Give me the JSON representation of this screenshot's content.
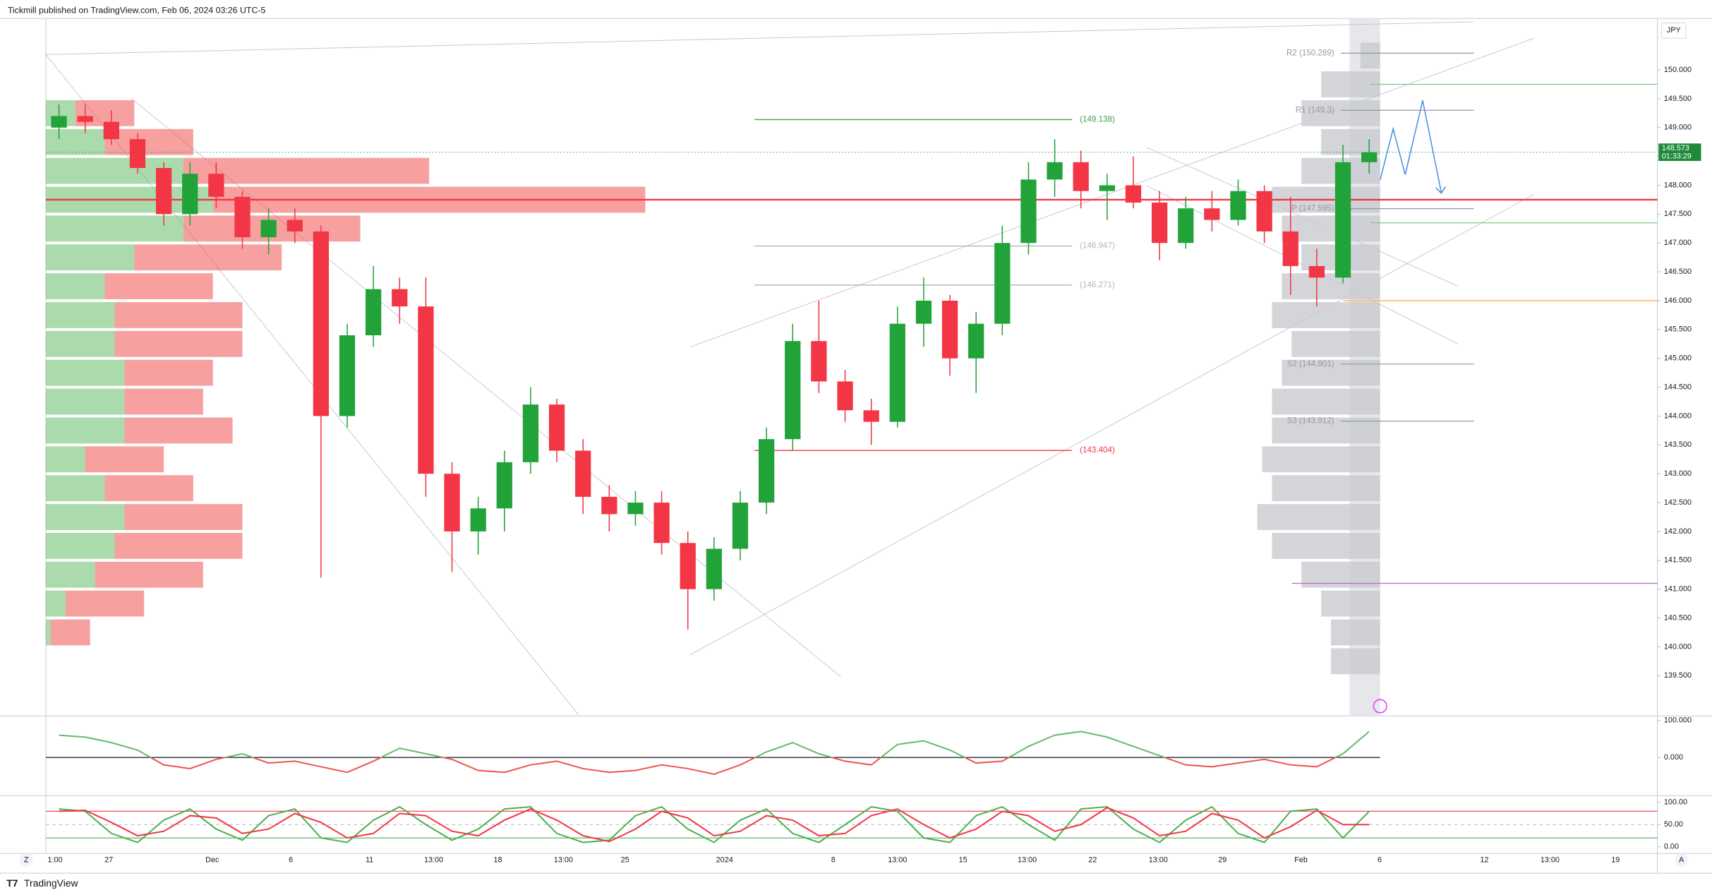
{
  "header": "Tickmill published on TradingView.com, Feb 06, 2024 03:26 UTC-5",
  "footer": {
    "logo": "TradingView",
    "left": "Z",
    "right": "A"
  },
  "chart_data": [
    {
      "type": "candlestick",
      "currency": "JPY",
      "up_color": "#22a33a",
      "down_color": "#f23645",
      "xlim": [
        0,
        123
      ],
      "ylim": [
        138.82,
        150.89
      ],
      "x": [
        1,
        3,
        5,
        7,
        9,
        11,
        13,
        15,
        17,
        19,
        21,
        23,
        25,
        27,
        29,
        31,
        33,
        35,
        37,
        39,
        41,
        43,
        45,
        47,
        49,
        51,
        53,
        55,
        57,
        59,
        61,
        63,
        65,
        67,
        69,
        71,
        73,
        75,
        77,
        79,
        81,
        83,
        85,
        87,
        89,
        91,
        93,
        95,
        97,
        99,
        101
      ],
      "candles": [
        [
          149.0,
          149.4,
          148.8,
          149.2
        ],
        [
          149.2,
          149.4,
          148.9,
          149.1
        ],
        [
          149.1,
          149.3,
          148.7,
          148.8
        ],
        [
          148.8,
          148.9,
          148.2,
          148.3
        ],
        [
          148.3,
          148.4,
          147.3,
          147.5
        ],
        [
          147.5,
          148.4,
          147.3,
          148.2
        ],
        [
          148.2,
          148.4,
          147.6,
          147.8
        ],
        [
          147.8,
          147.9,
          146.9,
          147.1
        ],
        [
          147.1,
          147.6,
          146.8,
          147.4
        ],
        [
          147.4,
          147.6,
          147.0,
          147.2
        ],
        [
          147.2,
          147.3,
          141.2,
          144.0
        ],
        [
          144.0,
          145.6,
          143.8,
          145.4
        ],
        [
          145.4,
          146.6,
          145.2,
          146.2
        ],
        [
          146.2,
          146.4,
          145.6,
          145.9
        ],
        [
          145.9,
          146.4,
          142.6,
          143.0
        ],
        [
          143.0,
          143.2,
          141.3,
          142.0
        ],
        [
          142.0,
          142.6,
          141.6,
          142.4
        ],
        [
          142.4,
          143.4,
          142.0,
          143.2
        ],
        [
          143.2,
          144.5,
          143.0,
          144.2
        ],
        [
          144.2,
          144.3,
          143.2,
          143.4
        ],
        [
          143.4,
          143.6,
          142.3,
          142.6
        ],
        [
          142.6,
          142.8,
          142.0,
          142.3
        ],
        [
          142.3,
          142.7,
          142.1,
          142.5
        ],
        [
          142.5,
          142.7,
          141.6,
          141.8
        ],
        [
          141.8,
          142.0,
          140.3,
          141.0
        ],
        [
          141.0,
          141.9,
          140.8,
          141.7
        ],
        [
          141.7,
          142.7,
          141.5,
          142.5
        ],
        [
          142.5,
          143.8,
          142.3,
          143.6
        ],
        [
          143.6,
          145.6,
          143.4,
          145.3
        ],
        [
          145.3,
          146.0,
          144.4,
          144.6
        ],
        [
          144.6,
          144.8,
          143.9,
          144.1
        ],
        [
          144.1,
          144.3,
          143.5,
          143.9
        ],
        [
          143.9,
          145.9,
          143.8,
          145.6
        ],
        [
          145.6,
          146.4,
          145.2,
          146.0
        ],
        [
          146.0,
          146.1,
          144.7,
          145.0
        ],
        [
          145.0,
          145.8,
          144.4,
          145.6
        ],
        [
          145.6,
          147.3,
          145.4,
          147.0
        ],
        [
          147.0,
          148.4,
          146.8,
          148.1
        ],
        [
          148.1,
          148.8,
          147.8,
          148.4
        ],
        [
          148.4,
          148.6,
          147.6,
          147.9
        ],
        [
          147.9,
          148.2,
          147.4,
          148.0
        ],
        [
          148.0,
          148.5,
          147.6,
          147.7
        ],
        [
          147.7,
          147.9,
          146.7,
          147.0
        ],
        [
          147.0,
          147.8,
          146.9,
          147.6
        ],
        [
          147.6,
          147.9,
          147.2,
          147.4
        ],
        [
          147.4,
          148.1,
          147.3,
          147.9
        ],
        [
          147.9,
          148.0,
          147.0,
          147.2
        ],
        [
          147.2,
          147.8,
          146.1,
          146.6
        ],
        [
          146.6,
          146.9,
          145.9,
          146.4
        ],
        [
          146.4,
          148.7,
          146.3,
          148.4
        ],
        [
          148.4,
          148.8,
          148.2,
          148.57
        ]
      ],
      "yticks": [
        {
          "value": 139.5,
          "label": "139.500"
        },
        {
          "value": 140,
          "label": "140.000"
        },
        {
          "value": 140.5,
          "label": "140.500"
        },
        {
          "value": 141,
          "label": "141.000"
        },
        {
          "value": 141.5,
          "label": "141.500"
        },
        {
          "value": 142,
          "label": "142.000"
        },
        {
          "value": 142.5,
          "label": "142.500"
        },
        {
          "value": 143,
          "label": "143.000"
        },
        {
          "value": 143.5,
          "label": "143.500"
        },
        {
          "value": 144,
          "label": "144.000"
        },
        {
          "value": 144.5,
          "label": "144.500"
        },
        {
          "value": 145,
          "label": "145.000"
        },
        {
          "value": 145.5,
          "label": "145.500"
        },
        {
          "value": 146,
          "label": "146.000"
        },
        {
          "value": 146.5,
          "label": "146.500"
        },
        {
          "value": 147,
          "label": "147.000"
        },
        {
          "value": 147.5,
          "label": "147.500"
        },
        {
          "value": 148,
          "label": "148.000"
        },
        {
          "value": 148.5,
          "label": "148.500"
        },
        {
          "value": 149,
          "label": "149.000"
        },
        {
          "value": 149.5,
          "label": "149.500"
        },
        {
          "value": 150,
          "label": "150.000"
        }
      ],
      "xticks": [
        {
          "value": 0.7,
          "label": "1:00"
        },
        {
          "value": 4.8,
          "label": "27"
        },
        {
          "value": 12.7,
          "label": "Dec"
        },
        {
          "value": 18.7,
          "label": "6"
        },
        {
          "value": 24.7,
          "label": "11"
        },
        {
          "value": 29.6,
          "label": "13:00"
        },
        {
          "value": 34.5,
          "label": "18"
        },
        {
          "value": 39.5,
          "label": "13:00"
        },
        {
          "value": 44.2,
          "label": "25"
        },
        {
          "value": 51.8,
          "label": "2024"
        },
        {
          "value": 60.1,
          "label": "8"
        },
        {
          "value": 65,
          "label": "13:00"
        },
        {
          "value": 70,
          "label": "15"
        },
        {
          "value": 74.9,
          "label": "13:00"
        },
        {
          "value": 79.9,
          "label": "22"
        },
        {
          "value": 84.9,
          "label": "13:00"
        },
        {
          "value": 89.8,
          "label": "29"
        },
        {
          "value": 95.8,
          "label": "Feb"
        },
        {
          "value": 101.8,
          "label": "6"
        },
        {
          "value": 109.8,
          "label": "12"
        },
        {
          "value": 114.8,
          "label": "13:00"
        },
        {
          "value": 119.8,
          "label": "19"
        }
      ],
      "last_price": 148.573,
      "countdown": "01:33:29",
      "last_color": "#1e8a3a",
      "pivots": [
        {
          "label": "R2 (150.289)",
          "value": 150.289
        },
        {
          "label": "R1 (149.3)",
          "value": 149.3
        },
        {
          "label": "P (147.595)",
          "value": 147.595
        },
        {
          "label": "S2 (144.901)",
          "value": 144.901
        },
        {
          "label": "S3 (143.912)",
          "value": 143.912
        }
      ],
      "pivot_color": "#9598a1",
      "levels": [
        {
          "label": "(149.138)",
          "value": 149.138,
          "color": "#43a047"
        },
        {
          "label": "(146.947)",
          "value": 146.947,
          "color": "#b2b5be"
        },
        {
          "label": "(146.271)",
          "value": 146.271,
          "color": "#b2b5be"
        },
        {
          "label": "(143.404)",
          "value": 143.404,
          "color": "#f23645"
        }
      ],
      "lines": [
        {
          "value": 147.75,
          "from": 0,
          "color": "#f23645"
        },
        {
          "value": 149.75,
          "from": 101.1,
          "color": "#81c784"
        },
        {
          "value": 147.35,
          "from": 101.1,
          "color": "#81c784"
        },
        {
          "value": 146.0,
          "from": 99,
          "color": "#ffa726"
        },
        {
          "value": 141.1,
          "from": 95.1,
          "color": "#ba68c8"
        }
      ],
      "volume_profile": {
        "xlim": [
          0,
          500
        ],
        "buy_color": "#66bb6a",
        "sell_color": "#ef5350",
        "prices": [
          149.25,
          148.75,
          148.25,
          147.75,
          147.25,
          146.75,
          146.25,
          145.75,
          145.25,
          144.75,
          144.25,
          143.75,
          143.25,
          142.75,
          142.25,
          141.75,
          141.25,
          140.75,
          140.25
        ],
        "buy": [
          30,
          60,
          140,
          170,
          140,
          90,
          60,
          70,
          70,
          80,
          80,
          80,
          40,
          60,
          80,
          70,
          50,
          20,
          5
        ],
        "sell": [
          60,
          90,
          250,
          440,
          180,
          150,
          110,
          130,
          130,
          90,
          80,
          110,
          80,
          90,
          120,
          130,
          110,
          80,
          40
        ]
      },
      "session_profile": {
        "xlim": [
          0,
          500
        ],
        "color": "#c8cad0",
        "prices": [
          150.25,
          149.75,
          149.25,
          148.75,
          148.25,
          147.75,
          147.25,
          146.75,
          146.25,
          145.75,
          145.25,
          144.75,
          144.25,
          143.75,
          143.25,
          142.75,
          142.25,
          141.75,
          141.25,
          140.75,
          140.25,
          139.75
        ],
        "values": [
          20,
          60,
          80,
          60,
          80,
          110,
          100,
          80,
          100,
          110,
          90,
          100,
          110,
          110,
          120,
          110,
          125,
          110,
          80,
          60,
          50,
          50
        ]
      }
    },
    {
      "type": "line",
      "xlim": [
        0,
        123
      ],
      "ylim": [
        -100,
        108.8
      ],
      "color_above": "#66bb6a",
      "color_below": "#ef5350",
      "zero": 0,
      "x": [
        1,
        3,
        5,
        7,
        9,
        11,
        13,
        15,
        17,
        19,
        21,
        23,
        25,
        27,
        29,
        31,
        33,
        35,
        37,
        39,
        41,
        43,
        45,
        47,
        49,
        51,
        53,
        55,
        57,
        59,
        61,
        63,
        65,
        67,
        69,
        71,
        73,
        75,
        77,
        79,
        81,
        83,
        85,
        87,
        89,
        91,
        93,
        95,
        97,
        99,
        101
      ],
      "values": [
        60,
        55,
        40,
        20,
        -20,
        -30,
        -5,
        10,
        -15,
        -10,
        -25,
        -40,
        -10,
        25,
        10,
        -5,
        -35,
        -40,
        -20,
        -10,
        -30,
        -40,
        -35,
        -20,
        -30,
        -45,
        -20,
        15,
        40,
        10,
        -10,
        -20,
        35,
        45,
        20,
        -15,
        -10,
        30,
        60,
        70,
        55,
        30,
        5,
        -20,
        -25,
        -15,
        -5,
        -20,
        -25,
        10,
        70
      ],
      "yticks": [
        {
          "value": 100,
          "label": "100.000"
        },
        {
          "value": 0,
          "label": "0.000"
        }
      ]
    },
    {
      "type": "line",
      "xlim": [
        0,
        123
      ],
      "ylim": [
        -15,
        112.5
      ],
      "x": [
        1,
        3,
        5,
        7,
        9,
        11,
        13,
        15,
        17,
        19,
        21,
        23,
        25,
        27,
        29,
        31,
        33,
        35,
        37,
        39,
        41,
        43,
        45,
        47,
        49,
        51,
        53,
        55,
        57,
        59,
        61,
        63,
        65,
        67,
        69,
        71,
        73,
        75,
        77,
        79,
        81,
        83,
        85,
        87,
        89,
        91,
        93,
        95,
        97,
        99,
        101
      ],
      "series": [
        {
          "color": "#4caf50",
          "values": [
            85,
            80,
            30,
            10,
            60,
            85,
            40,
            15,
            70,
            85,
            20,
            10,
            60,
            90,
            50,
            15,
            40,
            85,
            90,
            30,
            10,
            15,
            70,
            90,
            40,
            10,
            60,
            85,
            30,
            10,
            50,
            90,
            80,
            20,
            10,
            70,
            90,
            50,
            15,
            85,
            90,
            40,
            10,
            60,
            90,
            30,
            10,
            80,
            85,
            20,
            80
          ]
        },
        {
          "color": "#f23645",
          "values": [
            80,
            82,
            55,
            25,
            35,
            70,
            65,
            30,
            40,
            75,
            55,
            20,
            30,
            75,
            70,
            35,
            25,
            60,
            85,
            60,
            25,
            12,
            40,
            80,
            65,
            25,
            35,
            70,
            60,
            25,
            30,
            70,
            85,
            50,
            20,
            40,
            80,
            70,
            35,
            50,
            88,
            65,
            25,
            35,
            75,
            60,
            20,
            45,
            82,
            50,
            50
          ]
        }
      ],
      "bands": [
        {
          "value": 80,
          "color": "#f23645"
        },
        {
          "value": 50,
          "color": "#b2b5be"
        },
        {
          "value": 20,
          "color": "#4caf50"
        }
      ],
      "yticks": [
        {
          "value": 100,
          "label": "100.00"
        },
        {
          "value": 50,
          "label": "50.00"
        },
        {
          "value": 0,
          "label": "0.00"
        }
      ]
    }
  ]
}
